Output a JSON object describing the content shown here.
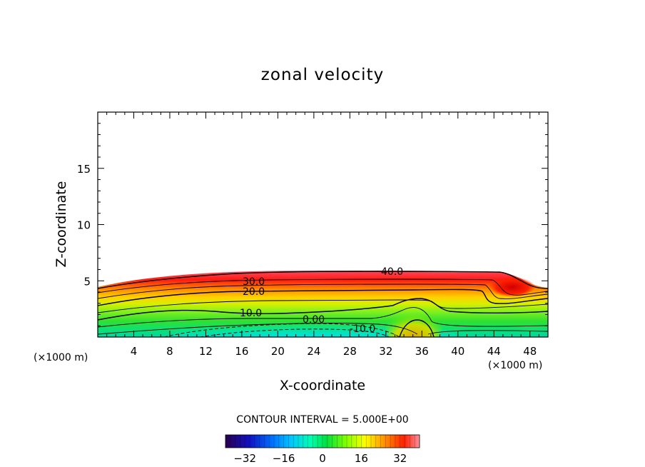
{
  "chart_data": {
    "type": "heatmap",
    "title": "zonal velocity",
    "xlabel": "X-coordinate",
    "ylabel": "Z-coordinate",
    "x_unit": "(×1000 m)",
    "x_unit_right": "(×1000 m)",
    "xlim": [
      0,
      50
    ],
    "ylim": [
      0,
      20
    ],
    "x_ticks": [
      "4",
      "8",
      "12",
      "16",
      "20",
      "24",
      "28",
      "32",
      "36",
      "40",
      "44",
      "48"
    ],
    "y_ticks": [
      "5",
      "10",
      "15"
    ],
    "contour_interval_text": "CONTOUR INTERVAL = 5.000E+00",
    "contour_labels": [
      "40.0",
      "30.0",
      "20.0",
      "10.0",
      "0.00",
      "-10.0"
    ],
    "colorbar": {
      "range": [
        -40,
        40
      ],
      "ticks": [
        "-32",
        "-16",
        "0",
        "16",
        "32"
      ],
      "colors": [
        "#2a0050",
        "#1010c0",
        "#0070ff",
        "#00c8ff",
        "#00ffb0",
        "#00e040",
        "#80ff00",
        "#ffff00",
        "#ff9000",
        "#ff2000",
        "#ff90a0"
      ]
    }
  }
}
